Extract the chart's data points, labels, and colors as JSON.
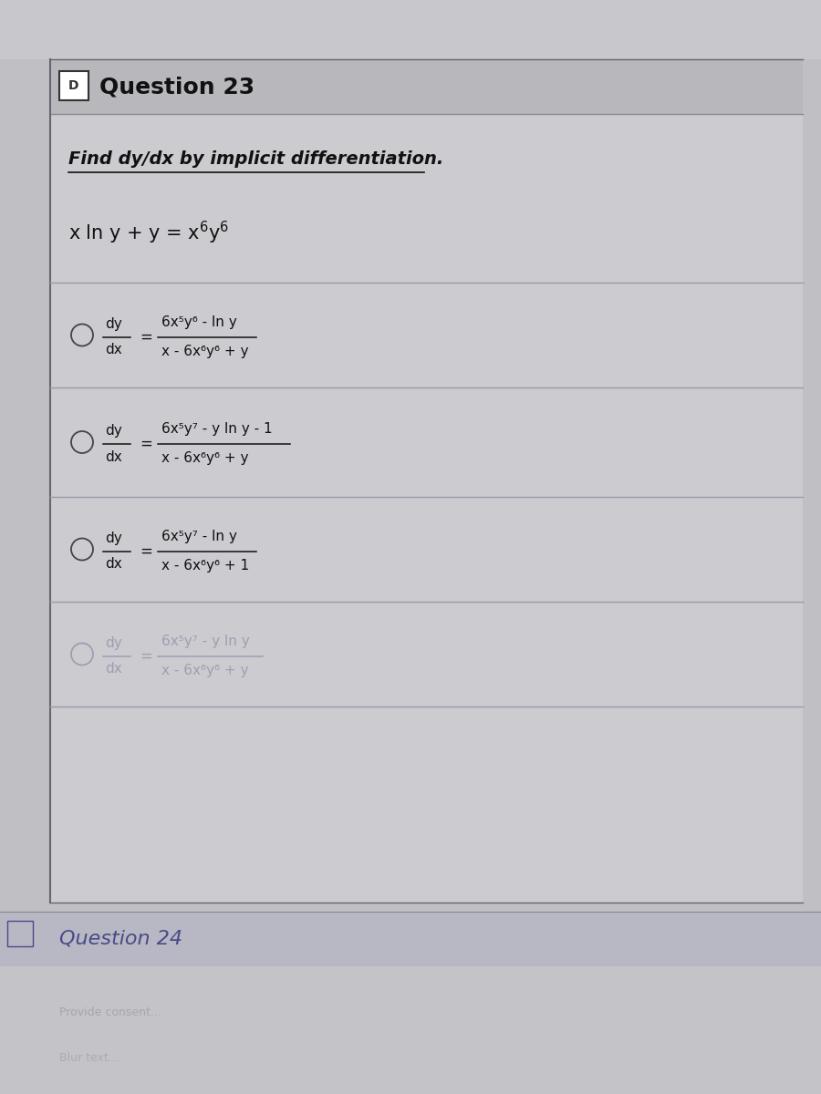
{
  "outer_bg": "#c0bfc4",
  "header_bg": "#b8b7bc",
  "content_bg": "#cccbd0",
  "left_strip_color": "#888890",
  "q23_title": "Question 23",
  "q23_title_color": "#111111",
  "instruction": "Find dy/dx by implicit differentiation.",
  "instruction_color": "#111111",
  "equation": "x lny+y = x⁶y⁶",
  "equation_color": "#111111",
  "option1_num": "6x⁵y⁶ - ln y",
  "option1_den": "x - 6x⁶y⁶ + y",
  "option2_num": "6x⁵y⁷ - y ln y - 1",
  "option2_den": "x - 6x⁶y⁶ + y",
  "option3_num": "6x⁵y⁷ - ln y",
  "option3_den": "x - 6x⁶y⁶ + 1",
  "option4_num": "6x⁵y⁷ - y ln y",
  "option4_den": "x - 6x⁶y⁶ + y",
  "dark_text": "#111111",
  "faded_text": "#7a7a99",
  "q24_title": "Question 24",
  "q24_title_color": "#4a4a88",
  "q24_bg": "#b8b7c4",
  "sep_color": "#9a9aa8",
  "figwidth": 9.0,
  "figheight": 12.0
}
